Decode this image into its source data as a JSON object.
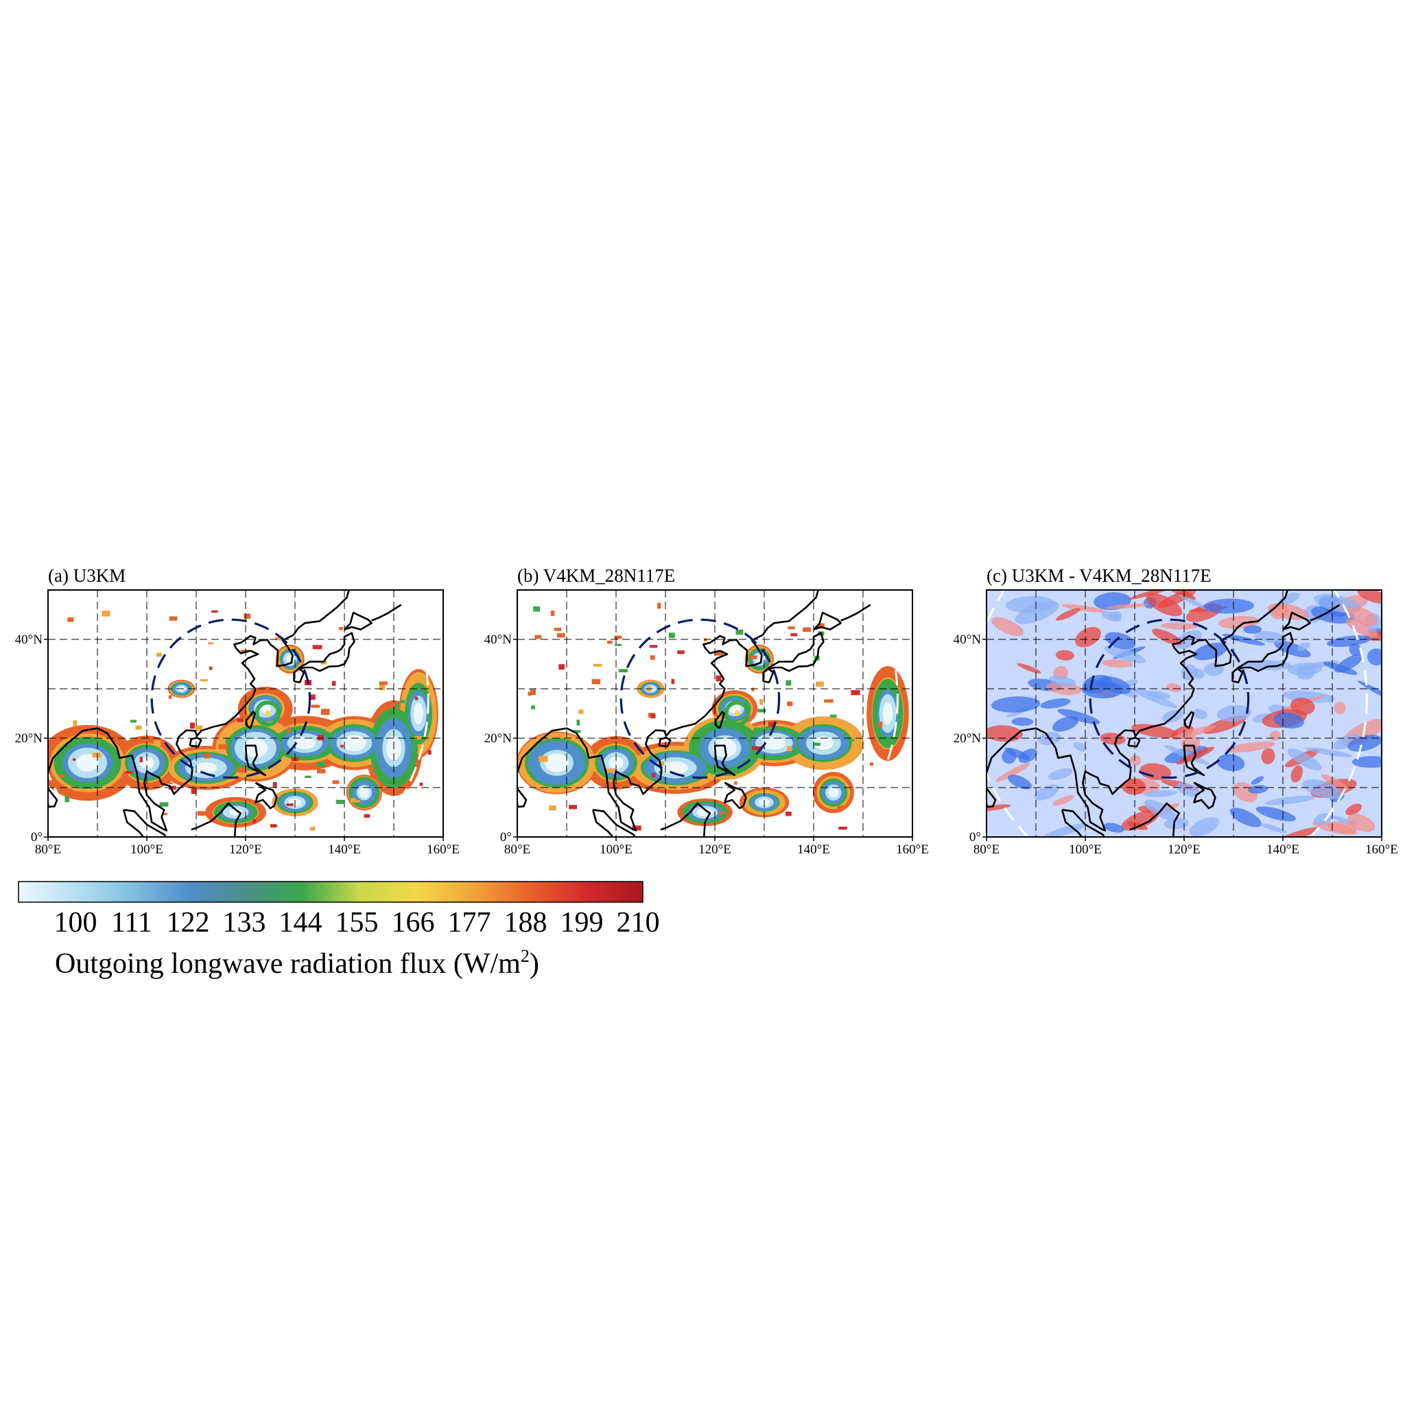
{
  "figure": {
    "panels": [
      {
        "id": "a",
        "title": "(a) U3KM",
        "kind": "olr"
      },
      {
        "id": "b",
        "title": "(b) V4KM_28N117E",
        "kind": "olr"
      },
      {
        "id": "c",
        "title": "(c) U3KM - V4KM_28N117E",
        "kind": "diff"
      }
    ],
    "colorbar": {
      "ticks": [
        "100",
        "111",
        "122",
        "133",
        "144",
        "155",
        "166",
        "177",
        "188",
        "199",
        "210"
      ],
      "label": "Outgoing longwave radiation flux (W/m",
      "label_sup": "2",
      "label_close": ")",
      "colors": [
        "#eef7fc",
        "#b7e0f2",
        "#7fbfe0",
        "#4f8fcc",
        "#4a8f8a",
        "#3aa84a",
        "#c8d84a",
        "#f4d84a",
        "#f2a53a",
        "#e8632a",
        "#d42a2a",
        "#a8181e"
      ]
    }
  },
  "chart_data": [
    {
      "type": "heatmap",
      "title": "(a) U3KM",
      "x_ticks": [
        "80°E",
        "100°E",
        "120°E",
        "140°E",
        "160°E"
      ],
      "y_ticks": [
        "0°",
        "20°N",
        "40°N"
      ],
      "xlim": [
        80,
        160
      ],
      "ylim": [
        0,
        50
      ],
      "grid": true,
      "value_range": [
        100,
        210
      ],
      "navy_dashed_circle": {
        "center_lon": 117,
        "center_lat": 28,
        "radius_deg": 16
      },
      "white_dashed_circle": {
        "center_lon": 117,
        "center_lat": 28,
        "radius_deg": 40
      }
    },
    {
      "type": "heatmap",
      "title": "(b) V4KM_28N117E",
      "x_ticks": [
        "80°E",
        "100°E",
        "120°E",
        "140°E",
        "160°E"
      ],
      "y_ticks": [
        "0°",
        "20°N",
        "40°N"
      ],
      "xlim": [
        80,
        160
      ],
      "ylim": [
        0,
        50
      ],
      "grid": true,
      "value_range": [
        100,
        210
      ],
      "navy_dashed_circle": {
        "center_lon": 117,
        "center_lat": 28,
        "radius_deg": 16
      },
      "white_dashed_circle": {
        "center_lon": 117,
        "center_lat": 28,
        "radius_deg": 40
      }
    },
    {
      "type": "heatmap",
      "title": "(c) U3KM - V4KM_28N117E",
      "x_ticks": [
        "80°E",
        "100°E",
        "120°E",
        "140°E",
        "160°E"
      ],
      "y_ticks": [
        "0°",
        "20°N",
        "40°N"
      ],
      "xlim": [
        80,
        160
      ],
      "ylim": [
        0,
        50
      ],
      "grid": true,
      "navy_dashed_circle": {
        "center_lon": 117,
        "center_lat": 28,
        "radius_deg": 16
      },
      "white_dashed_circle": {
        "center_lon": 117,
        "center_lat": 28,
        "radius_deg": 40
      }
    }
  ]
}
